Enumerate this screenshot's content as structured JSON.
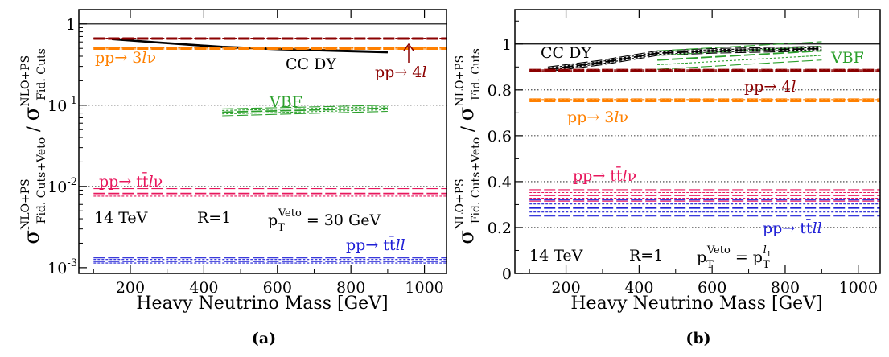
{
  "chart_data": [
    {
      "type": "line",
      "caption": "(a)",
      "xlabel": "Heavy Neutrino Mass [GeV]",
      "ylabel": "σ^{NLO+PS}_{Fid. Cuts+Veto} / σ^{NLO+PS}_{Fid. Cuts}",
      "yscale": "log",
      "xlim": [
        60,
        1060
      ],
      "ylim": [
        0.00085,
        1.5
      ],
      "xticks": [
        200,
        400,
        600,
        800,
        1000
      ],
      "xtick_labels": [
        "200",
        "400",
        "600",
        "800",
        "1000"
      ],
      "yticks": [
        0.001,
        0.01,
        0.1,
        1
      ],
      "ytick_labels": [
        "10^{-3}",
        "10^{-2}",
        "10^{-1}",
        "1"
      ],
      "gridlines": [
        0.01,
        0.1,
        1
      ],
      "series": [
        {
          "name": "CC DY",
          "color": "#000000",
          "style": "solid",
          "x": [
            150,
            300,
            450,
            600,
            750,
            900
          ],
          "y": [
            0.65,
            0.58,
            0.52,
            0.49,
            0.47,
            0.45
          ],
          "band": 0.01
        },
        {
          "name": "pp→ 4l",
          "color": "#8b0000",
          "style": "dashed",
          "x": [
            100,
            1060
          ],
          "y": [
            0.66,
            0.66
          ],
          "band": 0.015
        },
        {
          "name": "pp→ 3lν",
          "color": "#ff8000",
          "style": "dashed",
          "x": [
            100,
            1060
          ],
          "y": [
            0.5,
            0.5
          ],
          "band": 0.015
        },
        {
          "name": "VBF",
          "color": "#2ca02c",
          "style": "dashed",
          "x": [
            450,
            900
          ],
          "y": [
            0.082,
            0.092
          ],
          "band": 0.008
        },
        {
          "name": "pp→ tt̄lν",
          "color": "#e8175d",
          "style": "dashed",
          "x": [
            100,
            1060
          ],
          "y": [
            0.0082,
            0.0082
          ],
          "band": 0.0012
        },
        {
          "name": "pp→ tt̄ll",
          "color": "#1f1fd6",
          "style": "dashed",
          "x": [
            100,
            1060
          ],
          "y": [
            0.0012,
            0.0012
          ],
          "band": 0.00012
        }
      ],
      "annotations": {
        "energy": "14 TeV",
        "radius": "R=1",
        "veto": "p_T^{Veto} = 30 GeV"
      }
    },
    {
      "type": "line",
      "caption": "(b)",
      "xlabel": "Heavy Neutrino Mass [GeV]",
      "ylabel": "σ^{NLO+PS}_{Fid. Cuts+Veto} / σ^{NLO+PS}_{Fid. Cuts}",
      "yscale": "linear",
      "xlim": [
        60,
        1060
      ],
      "ylim": [
        0,
        1.15
      ],
      "xticks": [
        200,
        400,
        600,
        800,
        1000
      ],
      "xtick_labels": [
        "200",
        "400",
        "600",
        "800",
        "1000"
      ],
      "yticks": [
        0,
        0.2,
        0.4,
        0.6,
        0.8,
        1.0
      ],
      "ytick_labels": [
        "0",
        "0.2",
        "0.4",
        "0.6",
        "0.8",
        "1"
      ],
      "gridlines": [
        0.2,
        0.4,
        0.6,
        0.8,
        1.0
      ],
      "series": [
        {
          "name": "CC DY",
          "color": "#000000",
          "style": "dashed",
          "x": [
            150,
            300,
            450,
            600,
            750,
            900
          ],
          "y": [
            0.89,
            0.92,
            0.96,
            0.97,
            0.975,
            0.98
          ],
          "band": 0.01
        },
        {
          "name": "VBF",
          "color": "#2ca02c",
          "style": "dashed",
          "x": [
            450,
            900
          ],
          "y": [
            0.93,
            0.97
          ],
          "band": 0.04
        },
        {
          "name": "pp→ 4l",
          "color": "#8b0000",
          "style": "dashed",
          "x": [
            100,
            1060
          ],
          "y": [
            0.885,
            0.885
          ],
          "band": 0.005
        },
        {
          "name": "pp→ 3lν",
          "color": "#ff8000",
          "style": "dashed",
          "x": [
            100,
            1060
          ],
          "y": [
            0.755,
            0.755
          ],
          "band": 0.006
        },
        {
          "name": "pp→ tt̄lν",
          "color": "#e8175d",
          "style": "dashed",
          "x": [
            100,
            1060
          ],
          "y": [
            0.34,
            0.34
          ],
          "band": 0.025
        },
        {
          "name": "pp→ tt̄ll",
          "color": "#1f1fd6",
          "style": "dashed",
          "x": [
            100,
            1060
          ],
          "y": [
            0.285,
            0.285
          ],
          "band": 0.035
        }
      ],
      "annotations": {
        "energy": "14 TeV",
        "radius": "R=1",
        "veto": "p_T^{Veto} = p_T^{l_1}"
      }
    }
  ]
}
